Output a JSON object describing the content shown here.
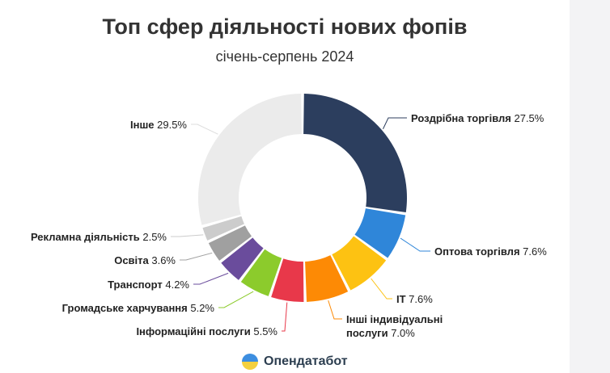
{
  "chart_data": {
    "type": "pie",
    "variant": "donut",
    "title": "Топ сфер діяльності нових фопів",
    "subtitle": "січень-серпень 2024",
    "series": [
      {
        "label": "Роздрібна торгівля",
        "value": 27.5,
        "value_text": "27.5%",
        "color": "#2c3e5e"
      },
      {
        "label": "Оптова торгівля",
        "value": 7.6,
        "value_text": "7.6%",
        "color": "#2f86d9"
      },
      {
        "label": "IT",
        "value": 7.6,
        "value_text": "7.6%",
        "color": "#fdc212"
      },
      {
        "label_lines": [
          "Інші індивідуальні",
          "послуги"
        ],
        "value": 7.0,
        "value_text": "7.0%",
        "color": "#fd8a05"
      },
      {
        "label": "Інформаційні послуги",
        "value": 5.5,
        "value_text": "5.5%",
        "color": "#e8384a"
      },
      {
        "label": "Громадське харчування",
        "value": 5.2,
        "value_text": "5.2%",
        "color": "#8ccb2c"
      },
      {
        "label": "Транспорт",
        "value": 4.2,
        "value_text": "4.2%",
        "color": "#6a4c9c"
      },
      {
        "label": "Освіта",
        "value": 3.6,
        "value_text": "3.6%",
        "color": "#a0a0a0"
      },
      {
        "label": "Рекламна діяльність",
        "value": 2.5,
        "value_text": "2.5%",
        "color": "#cccccc"
      },
      {
        "label": "Інше",
        "value": 29.5,
        "value_text": "29.5%",
        "color": "#ebebeb"
      }
    ]
  },
  "branding": {
    "name": "Опендатабот",
    "logo_colors": {
      "top": "#3d8ee0",
      "bottom": "#f4d03f"
    }
  }
}
